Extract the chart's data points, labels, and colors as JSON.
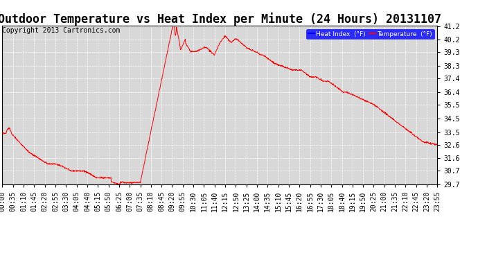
{
  "title": "Outdoor Temperature vs Heat Index per Minute (24 Hours) 20131107",
  "copyright_text": "Copyright 2013 Cartronics.com",
  "legend_labels": [
    "Heat Index  (°F)",
    "Temperature  (°F)"
  ],
  "background_color": "#ffffff",
  "plot_bg": "#d8d8d8",
  "grid_color": "#ffffff",
  "line_color": "red",
  "ymin": 29.7,
  "ymax": 41.2,
  "yticks": [
    29.7,
    30.7,
    31.6,
    32.6,
    33.5,
    34.5,
    35.5,
    36.4,
    37.4,
    38.3,
    39.3,
    40.2,
    41.2
  ],
  "title_fontsize": 12,
  "copyright_fontsize": 7,
  "tick_fontsize": 7,
  "xtick_labels": [
    "00:00",
    "00:35",
    "01:10",
    "01:45",
    "02:20",
    "02:55",
    "03:30",
    "04:05",
    "04:40",
    "05:15",
    "05:50",
    "06:25",
    "07:00",
    "07:35",
    "08:10",
    "08:45",
    "09:20",
    "09:55",
    "10:30",
    "11:05",
    "11:40",
    "12:15",
    "12:50",
    "13:25",
    "14:00",
    "14:35",
    "15:10",
    "15:45",
    "16:20",
    "16:55",
    "17:30",
    "18:05",
    "18:40",
    "19:15",
    "19:50",
    "20:25",
    "21:00",
    "21:35",
    "22:10",
    "22:45",
    "23:20",
    "23:55"
  ]
}
